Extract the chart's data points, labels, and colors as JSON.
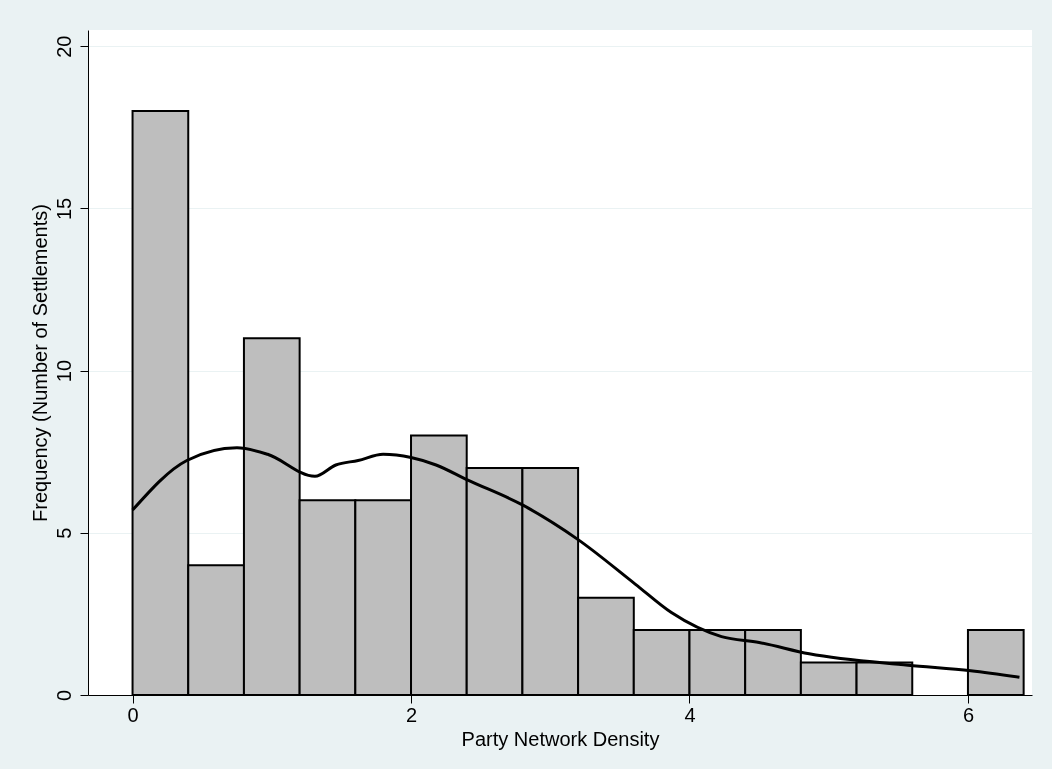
{
  "chart_data": {
    "type": "histogram",
    "xlabel": "Party Network Density",
    "ylabel": "Frequency (Number of Settlements)",
    "bins": [
      0,
      0.4,
      0.8,
      1.2,
      1.6,
      2.0,
      2.4,
      2.8,
      3.2,
      3.6,
      4.0,
      4.4,
      4.8,
      5.2,
      5.6,
      6.0,
      6.4
    ],
    "values": [
      18,
      4,
      11,
      6,
      6,
      8,
      7,
      7,
      3,
      2,
      2,
      2,
      1,
      1,
      0,
      2
    ],
    "color": "#bebebe",
    "series": [
      {
        "type": "line",
        "color": "#000000",
        "x": [
          0,
          0.39,
          0.75,
          0.97,
          1.31,
          1.46,
          1.62,
          1.8,
          2.0,
          2.18,
          2.4,
          2.8,
          3.2,
          3.61,
          3.87,
          4.23,
          4.5,
          4.86,
          5.57,
          6.02,
          6.37
        ],
        "values": [
          5.7,
          7.23,
          7.62,
          7.42,
          6.74,
          7.09,
          7.23,
          7.42,
          7.32,
          7.09,
          6.64,
          5.86,
          4.79,
          3.42,
          2.54,
          1.8,
          1.62,
          1.27,
          0.92,
          0.75,
          0.55
        ]
      }
    ],
    "xlim": [
      -0.32,
      6.46
    ],
    "xticks": [
      0,
      2,
      4,
      6
    ],
    "ylim": [
      0,
      20.5
    ],
    "yticks": [
      0,
      5,
      10,
      15,
      20
    ],
    "grid": "y"
  }
}
